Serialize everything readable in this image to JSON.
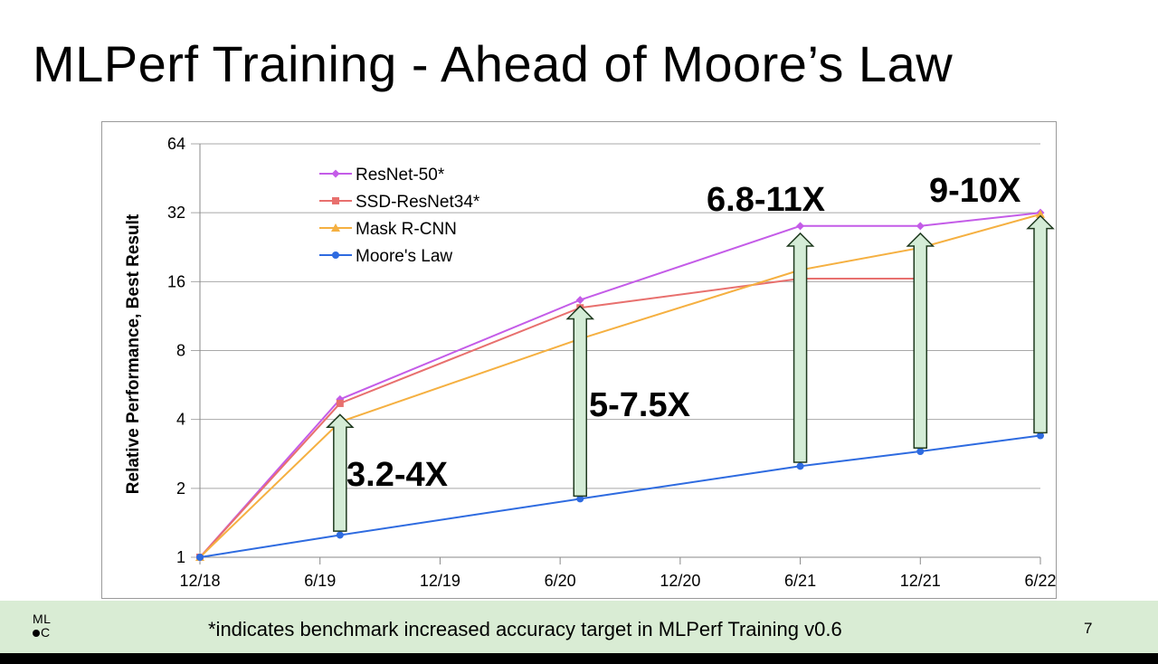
{
  "slide": {
    "title": "MLPerf Training - Ahead of Moore’s Law",
    "footnote": "*indicates benchmark increased accuracy target in MLPerf Training v0.6",
    "page_number": "7",
    "logo_line1": "ML",
    "logo_line2": "C"
  },
  "chart_data": {
    "type": "line",
    "title": "",
    "xlabel": "",
    "ylabel": "Relative Performance, Best Result",
    "y_scale": "log2",
    "ylim": [
      1,
      64
    ],
    "y_ticks": [
      1,
      2,
      4,
      8,
      16,
      32,
      64
    ],
    "y_tick_labels": [
      "1",
      "2",
      "4",
      "8",
      "16",
      "32",
      "64"
    ],
    "x_ticks": [
      "12/18",
      "6/19",
      "12/19",
      "6/20",
      "12/20",
      "6/21",
      "12/21",
      "6/22"
    ],
    "grid": true,
    "legend_position": "top-left",
    "series": [
      {
        "name": "ResNet-50*",
        "color": "#c45ce8",
        "marker": "diamond",
        "points": [
          [
            "12/18",
            1.0
          ],
          [
            "7/19",
            4.9
          ],
          [
            "7/20",
            13.3
          ],
          [
            "6/21",
            28.0
          ],
          [
            "12/21",
            28.0
          ],
          [
            "6/22",
            32.0
          ]
        ]
      },
      {
        "name": "SSD-ResNet34*",
        "color": "#e8706e",
        "marker": "square",
        "points": [
          [
            "12/18",
            1.0
          ],
          [
            "7/19",
            4.7
          ],
          [
            "7/20",
            12.3
          ],
          [
            "6/21",
            16.5
          ],
          [
            "12/21",
            16.5
          ]
        ]
      },
      {
        "name": "Mask R-CNN",
        "color": "#f5b041",
        "marker": "triangle",
        "points": [
          [
            "12/18",
            1.0
          ],
          [
            "7/19",
            3.9
          ],
          [
            "7/20",
            9.0
          ],
          [
            "6/21",
            18.0
          ],
          [
            "12/21",
            22.5
          ],
          [
            "6/22",
            31.5
          ]
        ]
      },
      {
        "name": "Moore's Law",
        "color": "#2e6be0",
        "marker": "circle",
        "points": [
          [
            "12/18",
            1.0
          ],
          [
            "7/19",
            1.25
          ],
          [
            "7/20",
            1.8
          ],
          [
            "6/21",
            2.5
          ],
          [
            "12/21",
            2.9
          ],
          [
            "6/22",
            3.4
          ]
        ]
      }
    ],
    "annotations": [
      {
        "text": "3.2-4X",
        "at": "7/19",
        "from": 1.3,
        "to": 4.2
      },
      {
        "text": "5-7.5X",
        "at": "7/20",
        "from": 1.85,
        "to": 12.5
      },
      {
        "text": "6.8-11X",
        "at": "6/21",
        "from": 2.6,
        "to": 26.0
      },
      {
        "text": "9-10X",
        "at": "12/21",
        "from": 3.0,
        "to": 26.0
      },
      {
        "text": "",
        "at": "6/22",
        "from": 3.5,
        "to": 31.0
      }
    ],
    "colors": {
      "arrow_fill": "#d4ecd6",
      "arrow_stroke": "#1f3a1f",
      "footer_bg": "#d9ecd4"
    }
  }
}
